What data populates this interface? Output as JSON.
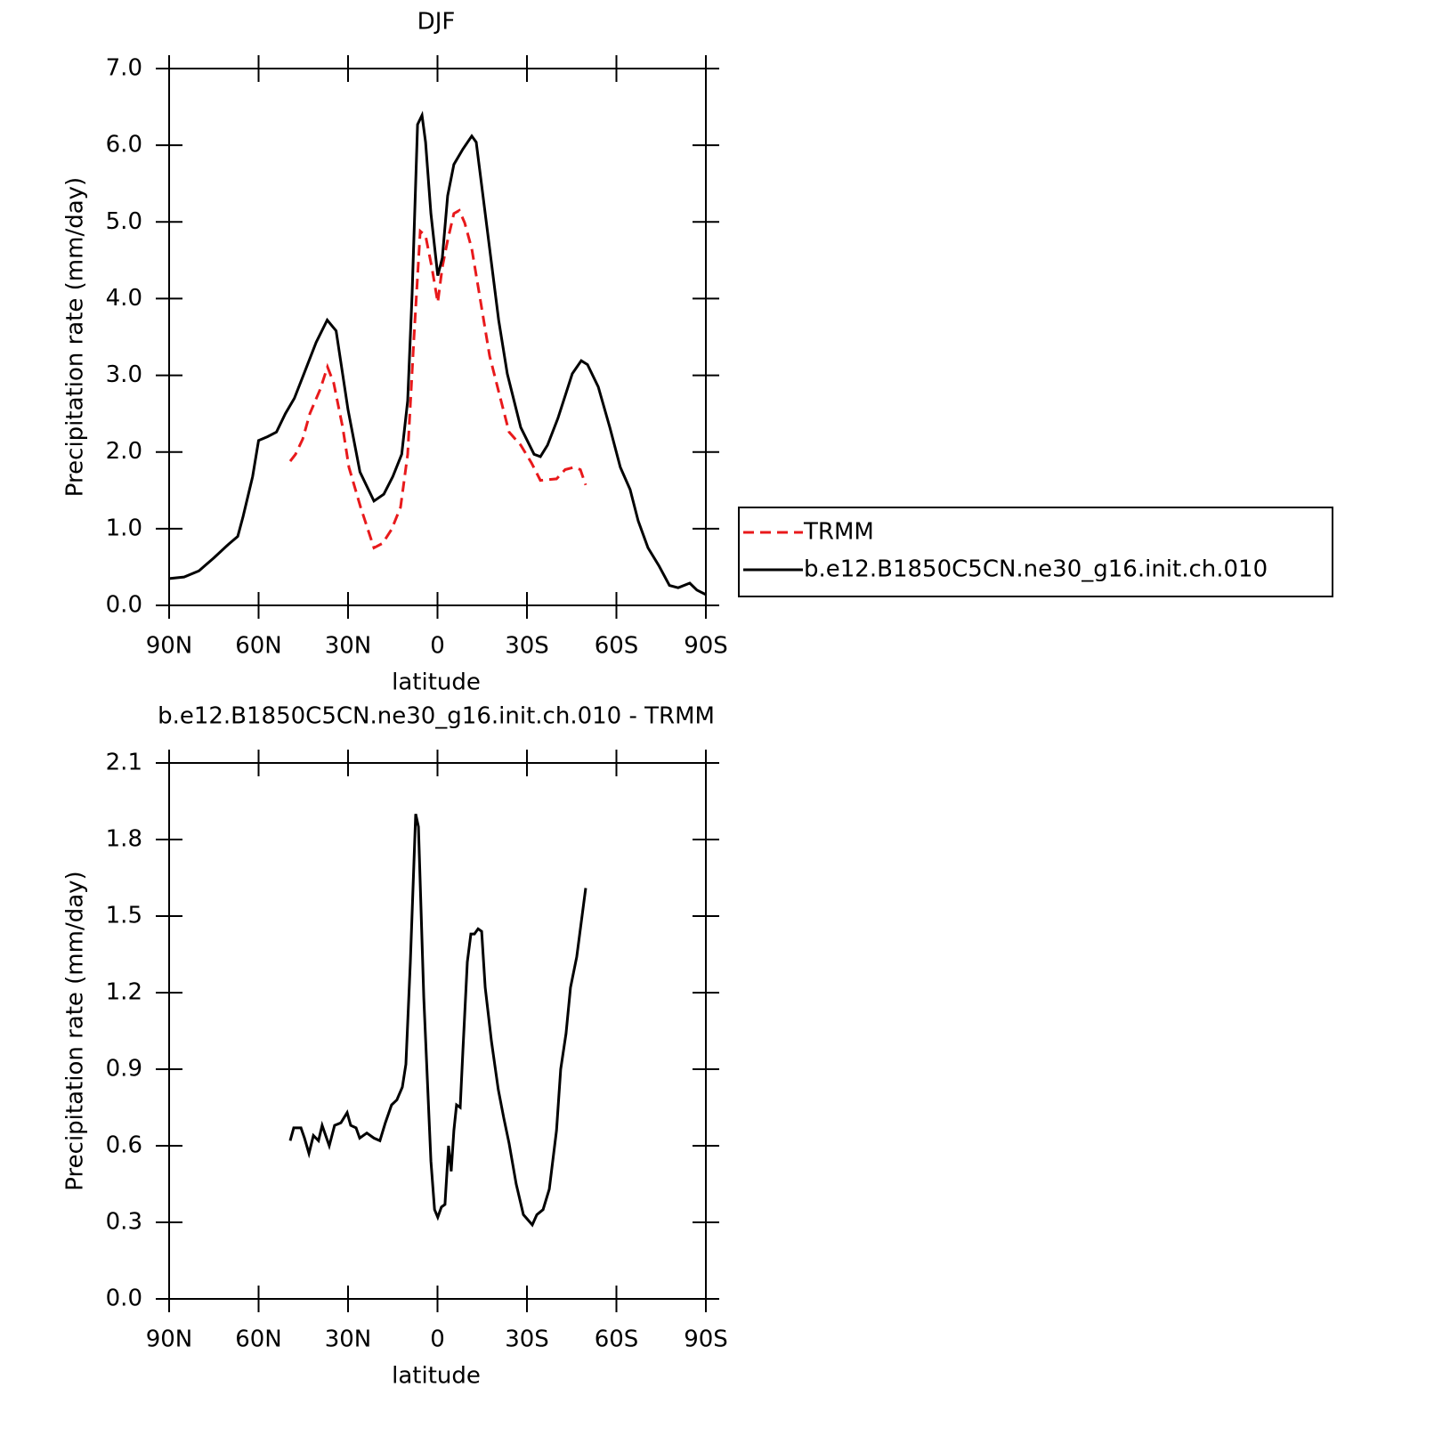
{
  "chart_data": [
    {
      "type": "line",
      "title": "DJF",
      "xlabel": "latitude",
      "ylabel": "Precipitation rate (mm/day)",
      "xlim": [
        90,
        -90
      ],
      "xticks": [
        {
          "value": 90,
          "label": "90N"
        },
        {
          "value": 60,
          "label": "60N"
        },
        {
          "value": 30,
          "label": "30N"
        },
        0,
        {
          "value": -30,
          "label": "30S"
        },
        {
          "value": -60,
          "label": "60S"
        },
        {
          "value": -90,
          "label": "90S"
        }
      ],
      "ylim": [
        0,
        7
      ],
      "yticks": [
        {
          "value": 0,
          "label": "0.0"
        },
        {
          "value": 1,
          "label": "1.0"
        },
        {
          "value": 2,
          "label": "2.0"
        },
        {
          "value": 3,
          "label": "3.0"
        },
        {
          "value": 4,
          "label": "4.0"
        },
        {
          "value": 5,
          "label": "5.0"
        },
        {
          "value": 6,
          "label": "6.0"
        },
        {
          "value": 7,
          "label": "7.0"
        }
      ],
      "legend": "right",
      "series": [
        {
          "name": "TRMM",
          "color": "#e8191b",
          "line_style": "dashed",
          "x": [
            49.4,
            47.6,
            45.2,
            42.8,
            39.3,
            36.9,
            34.8,
            31.8,
            29.7,
            25.8,
            21.3,
            18.4,
            15.4,
            12.4,
            10,
            7.9,
            5.8,
            4,
            1.9,
            -0.1,
            -1.6,
            -3.4,
            -5.5,
            -7.3,
            -9.1,
            -11.5,
            -14.5,
            -17.5,
            -20.5,
            -24,
            -27.9,
            -31.5,
            -34.5,
            -39.9,
            -42.8,
            -45.8,
            -47.9,
            -49.7
          ],
          "values": [
            1.88,
            1.97,
            2.17,
            2.5,
            2.82,
            3.11,
            2.9,
            2.32,
            1.8,
            1.28,
            0.75,
            0.81,
            0.99,
            1.28,
            1.97,
            3.48,
            4.88,
            4.82,
            4.41,
            3.95,
            4.41,
            4.76,
            5.11,
            5.15,
            4.99,
            4.65,
            3.95,
            3.25,
            2.79,
            2.26,
            2.09,
            1.86,
            1.63,
            1.65,
            1.77,
            1.8,
            1.77,
            1.57
          ]
        },
        {
          "name": "b.e12.B1850C5CN.ne30_g16.init.ch.010",
          "color": "#000000",
          "line_style": "solid",
          "x": [
            90,
            85,
            80,
            75,
            70,
            67,
            65.2,
            62,
            60,
            57,
            54,
            51,
            48,
            45,
            40.7,
            37,
            34,
            30,
            26,
            21.3,
            18,
            15,
            12,
            10,
            8.5,
            6.7,
            5.2,
            4,
            2.2,
            -0.1,
            -1.6,
            -3.4,
            -5.5,
            -8.5,
            -11.5,
            -13,
            -14.5,
            -17.5,
            -20.5,
            -23.4,
            -27.9,
            -32.4,
            -34.5,
            -36.9,
            -40.4,
            -45.2,
            -48.2,
            -50.3,
            -53.9,
            -57.8,
            -61.3,
            -64.6,
            -67.3,
            -70.6,
            -74.2,
            -77.8,
            -80.7,
            -84.6,
            -87,
            -90
          ],
          "values": [
            0.35,
            0.37,
            0.45,
            0.62,
            0.8,
            0.9,
            1.16,
            1.68,
            2.15,
            2.2,
            2.26,
            2.5,
            2.7,
            3.0,
            3.43,
            3.72,
            3.58,
            2.55,
            1.74,
            1.36,
            1.45,
            1.68,
            1.97,
            2.67,
            4.07,
            6.27,
            6.39,
            6.04,
            5.11,
            4.3,
            4.53,
            5.34,
            5.75,
            5.95,
            6.12,
            6.04,
            5.57,
            4.65,
            3.72,
            3.02,
            2.32,
            1.97,
            1.94,
            2.09,
            2.44,
            3.02,
            3.19,
            3.14,
            2.85,
            2.32,
            1.8,
            1.51,
            1.1,
            0.75,
            0.52,
            0.26,
            0.23,
            0.29,
            0.2,
            0.14
          ]
        }
      ]
    },
    {
      "type": "line",
      "title": "b.e12.B1850C5CN.ne30_g16.init.ch.010 - TRMM",
      "xlabel": "latitude",
      "ylabel": "Precipitation rate (mm/day)",
      "xlim": [
        90,
        -90
      ],
      "xticks": [
        {
          "value": 90,
          "label": "90N"
        },
        {
          "value": 60,
          "label": "60N"
        },
        {
          "value": 30,
          "label": "30N"
        },
        0,
        {
          "value": -30,
          "label": "30S"
        },
        {
          "value": -60,
          "label": "60S"
        },
        {
          "value": -90,
          "label": "90S"
        }
      ],
      "ylim": [
        0,
        2.1
      ],
      "yticks": [
        {
          "value": 0,
          "label": "0.0"
        },
        0.3,
        0.6,
        0.9,
        1.2,
        1.5,
        1.8,
        2.1
      ],
      "series": [
        {
          "color": "#000000",
          "line_style": "solid",
          "x": [
            49.4,
            48.2,
            45.8,
            44.6,
            43.1,
            41.6,
            39.9,
            38.7,
            36.3,
            34.5,
            32.4,
            30.3,
            29.1,
            27.3,
            26.1,
            23.7,
            21.3,
            19.3,
            17.5,
            15.4,
            13.6,
            11.8,
            10.6,
            9.1,
            7.3,
            6.4,
            4.6,
            2.2,
            1,
            -0.1,
            -1.3,
            -2.5,
            -3.7,
            -4.6,
            -5.5,
            -6.4,
            -7.6,
            -8.5,
            -10,
            -11.2,
            -12.4,
            -13.6,
            -14.8,
            -16,
            -18.1,
            -20.4,
            -22.2,
            -24,
            -26.4,
            -28.8,
            -30.3,
            -31.8,
            -33.3,
            -35.4,
            -37.5,
            -39.9,
            -41.3,
            -43.1,
            -44.6,
            -46.7,
            -49.7
          ],
          "values": [
            0.62,
            0.67,
            0.67,
            0.63,
            0.57,
            0.64,
            0.62,
            0.68,
            0.6,
            0.68,
            0.69,
            0.73,
            0.68,
            0.67,
            0.63,
            0.65,
            0.63,
            0.62,
            0.69,
            0.76,
            0.78,
            0.83,
            0.92,
            1.32,
            1.9,
            1.85,
            1.18,
            0.54,
            0.35,
            0.32,
            0.36,
            0.37,
            0.6,
            0.5,
            0.66,
            0.76,
            0.75,
            0.97,
            1.32,
            1.43,
            1.43,
            1.45,
            1.44,
            1.22,
            1.01,
            0.82,
            0.71,
            0.61,
            0.45,
            0.33,
            0.31,
            0.29,
            0.33,
            0.35,
            0.43,
            0.66,
            0.9,
            1.04,
            1.22,
            1.34,
            1.61
          ]
        }
      ]
    }
  ]
}
